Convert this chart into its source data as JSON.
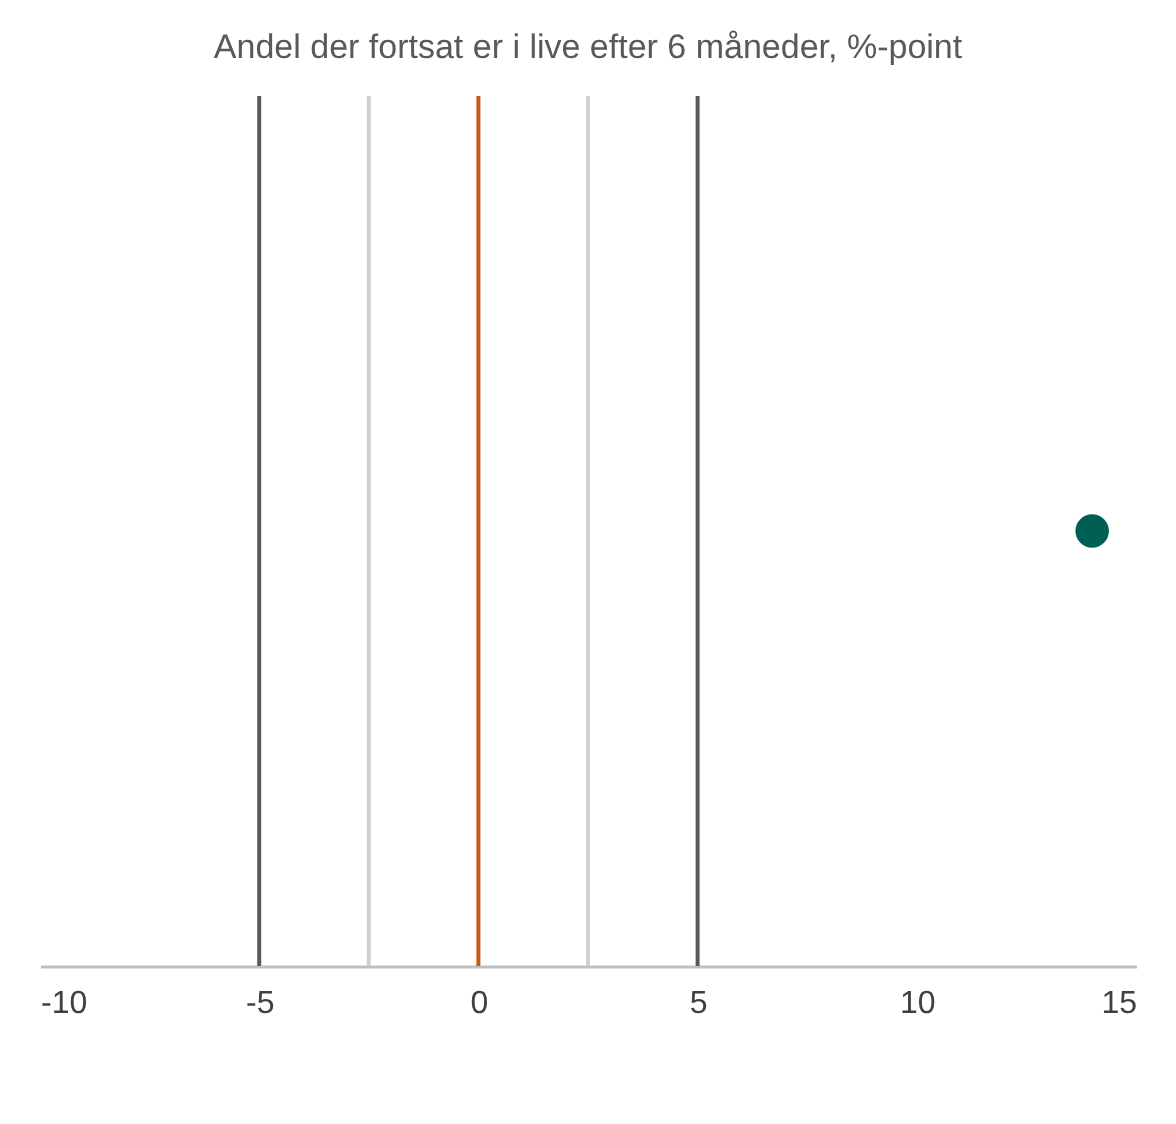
{
  "chart_data": {
    "type": "scatter",
    "title": "Andel der fortsat er i live efter 6 måneder, %-point",
    "orientation": "horizontal",
    "categories": [
      null
    ],
    "series": [
      {
        "color": "#005f55",
        "values": [
          14
        ]
      }
    ],
    "xlim": [
      -10,
      15
    ],
    "xticks": [
      -10,
      -5,
      0,
      5,
      10,
      15
    ],
    "grid": false,
    "marker": "circle",
    "tick_labels": "x",
    "ref_lines": [
      {
        "axis": "x",
        "value": -5,
        "color": "#595959"
      },
      {
        "axis": "x",
        "value": 5,
        "color": "#595959"
      },
      {
        "axis": "x",
        "value": -2.5,
        "color": "#d0d0d0"
      },
      {
        "axis": "x",
        "value": 2.5,
        "color": "#d0d0d0"
      },
      {
        "axis": "x",
        "value": 0,
        "color": "#c55a11"
      }
    ]
  }
}
